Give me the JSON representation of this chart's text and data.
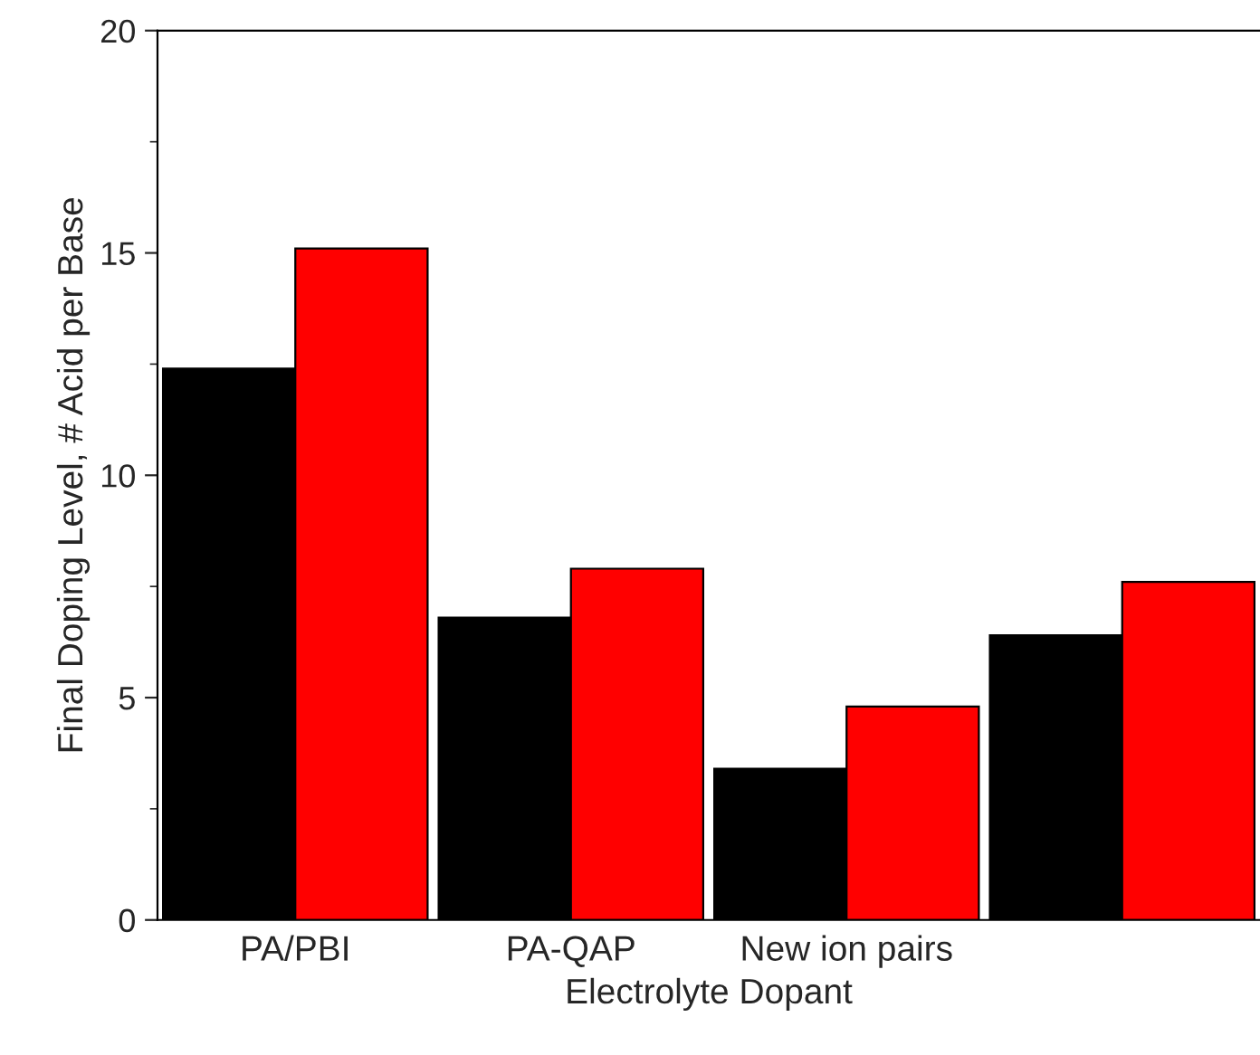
{
  "chart_data": {
    "type": "bar",
    "xlabel": "Electrolyte Dopant",
    "ylabel": "Final Doping Level, # Acid per Base",
    "categories": [
      "PA/PBI",
      "PA-QAP",
      "New ion pairs",
      null
    ],
    "series": [
      {
        "color": "#000000",
        "values": [
          12.4,
          6.8,
          3.4,
          6.4
        ]
      },
      {
        "color": "#ff0000",
        "values": [
          15.1,
          7.9,
          4.8,
          7.6
        ]
      }
    ],
    "ylim": [
      0,
      20
    ],
    "yticks": [
      0,
      5,
      10,
      15,
      20
    ],
    "grid": false
  }
}
